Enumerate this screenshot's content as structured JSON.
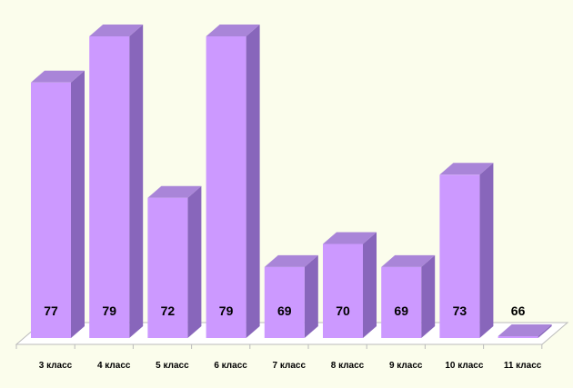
{
  "chart_data": {
    "type": "bar",
    "categories": [
      "3 класс",
      "4 класс",
      "5 класс",
      "6 класс",
      "7 класс",
      "8 класс",
      "9 класс",
      "10 класс",
      "11 класс"
    ],
    "values": [
      77,
      79,
      72,
      79,
      69,
      70,
      69,
      73,
      66
    ],
    "data_labels": [
      "77",
      "79",
      "72",
      "79",
      "69",
      "70",
      "69",
      "73",
      "66"
    ],
    "title": "",
    "xlabel": "",
    "ylabel": "",
    "ylim": [
      60,
      80
    ],
    "grid": false,
    "legend": "none",
    "style": "3d",
    "colors": {
      "bar_front": "#cc99ff",
      "bar_side": "#8866bb",
      "bar_top": "#a985d8",
      "floor": "#ffffff",
      "floor_edge": "#bbbbbb",
      "background": "#fbfdec"
    }
  }
}
